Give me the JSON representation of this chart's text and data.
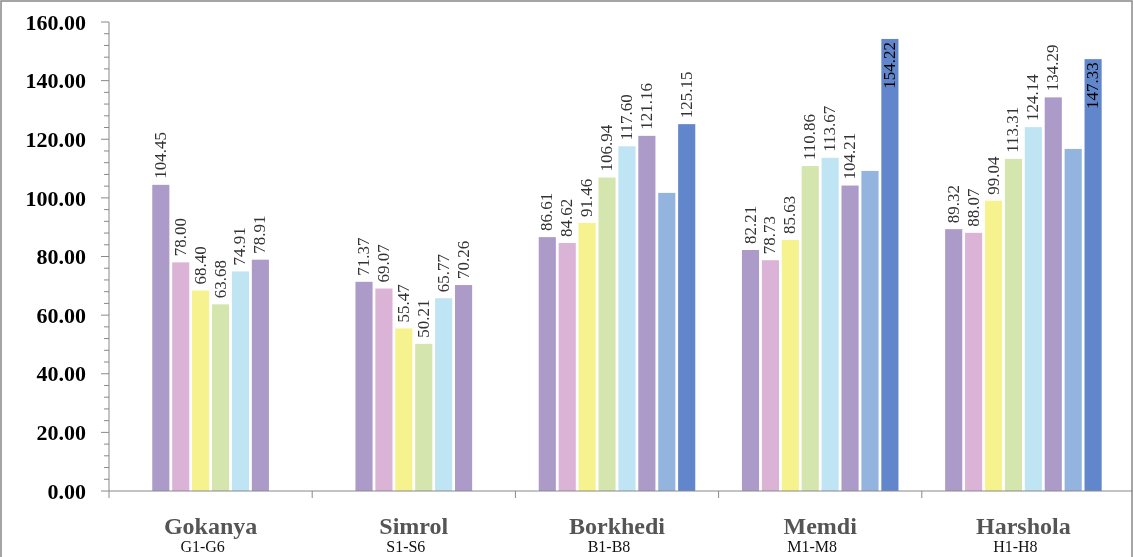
{
  "chart_data": {
    "type": "bar",
    "categories": [
      "Gokanya\nG1-G6",
      "Simrol\nS1-S6",
      "Borkhedi\nB1-B8",
      "Memdi\nM1-M8",
      "Harshola\nH1-H8"
    ],
    "series": [
      {
        "color": "#ac9bc8",
        "values": [
          104.45,
          71.37,
          86.61,
          82.21,
          89.32
        ],
        "value_labels": [
          "104.45",
          "71.37",
          "86.61",
          "82.21",
          "89.32"
        ]
      },
      {
        "color": "#dab3d6",
        "values": [
          78.0,
          69.07,
          84.62,
          78.73,
          88.07
        ],
        "value_labels": [
          "78.00",
          "69.07",
          "84.62",
          "78.73",
          "88.07"
        ]
      },
      {
        "color": "#f6f28e",
        "values": [
          68.4,
          55.47,
          91.46,
          85.63,
          99.04
        ],
        "value_labels": [
          "68.40",
          "55.47",
          "91.46",
          "85.63",
          "99.04"
        ]
      },
      {
        "color": "#d4e6ae",
        "values": [
          63.68,
          50.21,
          106.94,
          110.86,
          113.31
        ],
        "value_labels": [
          "63.68",
          "50.21",
          "106.94",
          "110.86",
          "113.31"
        ]
      },
      {
        "color": "#bfe5f4",
        "values": [
          74.91,
          65.77,
          117.6,
          113.67,
          124.14
        ],
        "value_labels": [
          "74.91",
          "65.77",
          "117.60",
          "113.67",
          "124.14"
        ]
      },
      {
        "color": "#ac9bc8",
        "values": [
          78.91,
          70.26,
          121.16,
          104.21,
          134.29
        ],
        "value_labels": [
          "78.91",
          "70.26",
          "121.16",
          "104.21",
          "134.29"
        ]
      },
      {
        "color": "#92b4de",
        "values": [
          null,
          null,
          101.7,
          109.2,
          116.7
        ],
        "value_labels": [
          null,
          null,
          null,
          null,
          null
        ]
      },
      {
        "color": "#6186cb",
        "values": [
          null,
          null,
          125.15,
          154.22,
          147.33
        ],
        "value_labels": [
          null,
          null,
          "125.15",
          "154.22",
          "147.33"
        ]
      }
    ],
    "ylim": [
      0,
      160
    ],
    "yticks": [
      {
        "value": 0,
        "label": "0.00"
      },
      {
        "value": 4,
        "label": null
      },
      {
        "value": 8,
        "label": null
      },
      {
        "value": 12,
        "label": null
      },
      {
        "value": 16,
        "label": null
      },
      {
        "value": 20,
        "label": "20.00"
      },
      {
        "value": 24,
        "label": null
      },
      {
        "value": 28,
        "label": null
      },
      {
        "value": 32,
        "label": null
      },
      {
        "value": 36,
        "label": null
      },
      {
        "value": 40,
        "label": "40.00"
      },
      {
        "value": 44,
        "label": null
      },
      {
        "value": 48,
        "label": null
      },
      {
        "value": 52,
        "label": null
      },
      {
        "value": 56,
        "label": null
      },
      {
        "value": 60,
        "label": "60.00"
      },
      {
        "value": 64,
        "label": null
      },
      {
        "value": 68,
        "label": null
      },
      {
        "value": 72,
        "label": null
      },
      {
        "value": 76,
        "label": null
      },
      {
        "value": 80,
        "label": "80.00"
      },
      {
        "value": 84,
        "label": null
      },
      {
        "value": 88,
        "label": null
      },
      {
        "value": 92,
        "label": null
      },
      {
        "value": 96,
        "label": null
      },
      {
        "value": 100,
        "label": "100.00"
      },
      {
        "value": 104,
        "label": null
      },
      {
        "value": 108,
        "label": null
      },
      {
        "value": 112,
        "label": null
      },
      {
        "value": 116,
        "label": null
      },
      {
        "value": 120,
        "label": "120.00"
      },
      {
        "value": 124,
        "label": null
      },
      {
        "value": 128,
        "label": null
      },
      {
        "value": 132,
        "label": null
      },
      {
        "value": 136,
        "label": null
      },
      {
        "value": 140,
        "label": "140.00"
      },
      {
        "value": 144,
        "label": null
      },
      {
        "value": 148,
        "label": null
      },
      {
        "value": 152,
        "label": null
      },
      {
        "value": 156,
        "label": null
      },
      {
        "value": 160,
        "label": "160.00"
      }
    ],
    "grid": false
  }
}
